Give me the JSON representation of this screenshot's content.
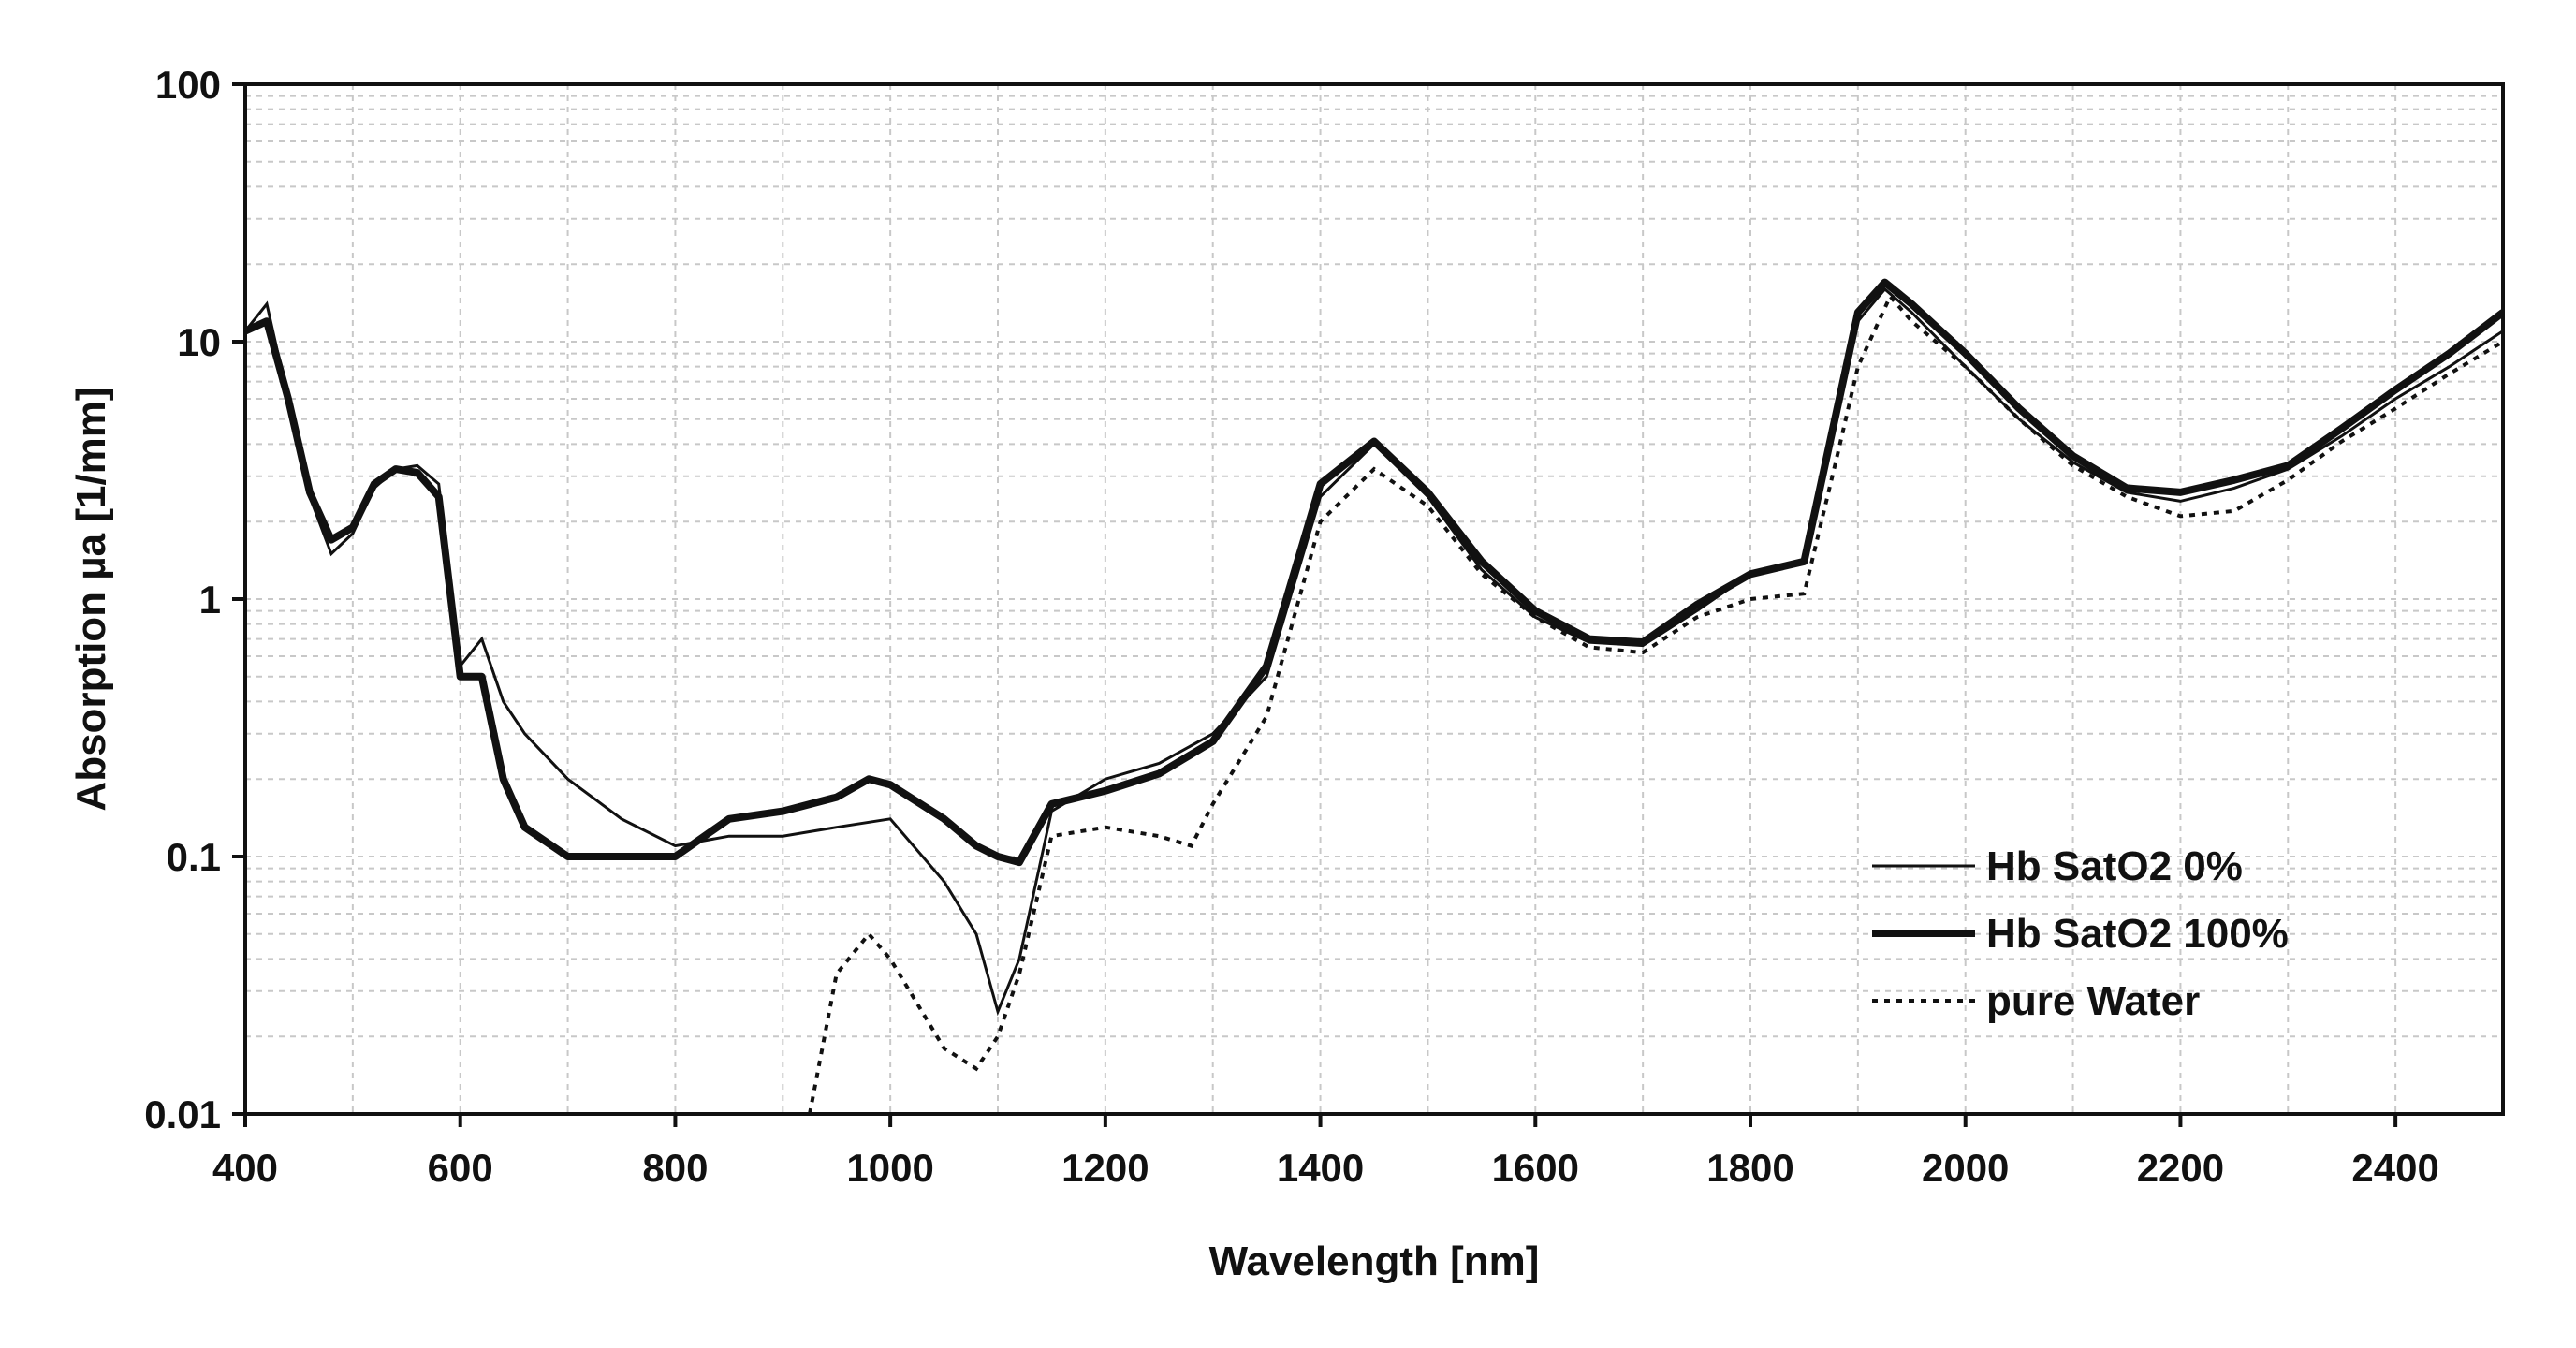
{
  "chart_data": {
    "type": "line",
    "title": "",
    "xlabel": "Wavelength [nm]",
    "ylabel": "Absorption µa [1/mm]",
    "xlim": [
      400,
      2500
    ],
    "ylim": [
      0.01,
      100
    ],
    "yscale": "log",
    "grid": true,
    "legend_position": "bottom-right",
    "x_ticks": [
      400,
      600,
      800,
      1000,
      1200,
      1400,
      1600,
      1800,
      2000,
      2200,
      2400
    ],
    "x_tick_labels": [
      "400",
      "600",
      "800",
      "1000",
      "1200",
      "1400",
      "1600",
      "1800",
      "2000",
      "2200",
      "2400"
    ],
    "y_ticks": [
      0.01,
      0.1,
      1,
      10,
      100
    ],
    "y_tick_labels": [
      "0.01",
      "0.1",
      "1",
      "10",
      "100"
    ],
    "series": [
      {
        "name": "Hb SatO2 0%",
        "style": "thin",
        "x": [
          400,
          420,
          440,
          460,
          480,
          500,
          520,
          540,
          560,
          580,
          600,
          620,
          640,
          660,
          700,
          750,
          800,
          850,
          900,
          950,
          1000,
          1050,
          1080,
          1100,
          1120,
          1150,
          1200,
          1250,
          1300,
          1350,
          1400,
          1450,
          1500,
          1550,
          1600,
          1650,
          1700,
          1750,
          1800,
          1850,
          1900,
          1925,
          1950,
          2000,
          2050,
          2100,
          2150,
          2200,
          2250,
          2300,
          2350,
          2400,
          2450,
          2500
        ],
        "y": [
          11,
          14,
          6,
          2.5,
          1.5,
          1.8,
          2.7,
          3.2,
          3.3,
          2.8,
          0.55,
          0.7,
          0.4,
          0.3,
          0.2,
          0.14,
          0.11,
          0.12,
          0.12,
          0.13,
          0.14,
          0.08,
          0.05,
          0.025,
          0.04,
          0.15,
          0.2,
          0.23,
          0.3,
          0.5,
          2.5,
          4,
          2.5,
          1.3,
          0.85,
          0.68,
          0.66,
          0.9,
          1.25,
          1.4,
          12,
          16,
          13,
          8,
          5,
          3.4,
          2.6,
          2.4,
          2.7,
          3.2,
          4.3,
          6,
          8,
          11
        ]
      },
      {
        "name": "Hb SatO2 100%",
        "style": "thick",
        "x": [
          400,
          420,
          440,
          460,
          480,
          500,
          520,
          540,
          560,
          580,
          600,
          620,
          640,
          660,
          700,
          750,
          800,
          850,
          900,
          950,
          980,
          1000,
          1050,
          1080,
          1100,
          1120,
          1150,
          1200,
          1250,
          1300,
          1350,
          1400,
          1450,
          1500,
          1550,
          1600,
          1650,
          1700,
          1750,
          1800,
          1850,
          1900,
          1925,
          1950,
          2000,
          2050,
          2100,
          2150,
          2200,
          2250,
          2300,
          2350,
          2400,
          2450,
          2500
        ],
        "y": [
          11,
          12,
          6,
          2.6,
          1.7,
          1.9,
          2.8,
          3.2,
          3.1,
          2.5,
          0.5,
          0.5,
          0.2,
          0.13,
          0.1,
          0.1,
          0.1,
          0.14,
          0.15,
          0.17,
          0.2,
          0.19,
          0.14,
          0.11,
          0.1,
          0.095,
          0.16,
          0.18,
          0.21,
          0.28,
          0.55,
          2.8,
          4.1,
          2.6,
          1.4,
          0.9,
          0.7,
          0.68,
          0.95,
          1.25,
          1.4,
          13,
          17,
          14,
          9,
          5.5,
          3.6,
          2.7,
          2.6,
          2.9,
          3.3,
          4.6,
          6.5,
          9,
          13
        ]
      },
      {
        "name": "pure Water",
        "style": "dotted",
        "x": [
          925,
          950,
          980,
          1000,
          1050,
          1080,
          1100,
          1120,
          1150,
          1200,
          1250,
          1280,
          1300,
          1350,
          1400,
          1450,
          1500,
          1550,
          1600,
          1650,
          1700,
          1750,
          1800,
          1850,
          1880,
          1900,
          1930,
          1950,
          2000,
          2050,
          2100,
          2150,
          2200,
          2250,
          2300,
          2350,
          2400,
          2450,
          2500
        ],
        "y": [
          0.01,
          0.035,
          0.05,
          0.04,
          0.018,
          0.015,
          0.02,
          0.035,
          0.12,
          0.13,
          0.12,
          0.11,
          0.16,
          0.35,
          2,
          3.2,
          2.3,
          1.25,
          0.85,
          0.65,
          0.62,
          0.85,
          1.0,
          1.05,
          3.5,
          8,
          15,
          12,
          8,
          5,
          3.3,
          2.5,
          2.1,
          2.2,
          2.9,
          4.1,
          5.5,
          7.5,
          10
        ]
      }
    ]
  }
}
